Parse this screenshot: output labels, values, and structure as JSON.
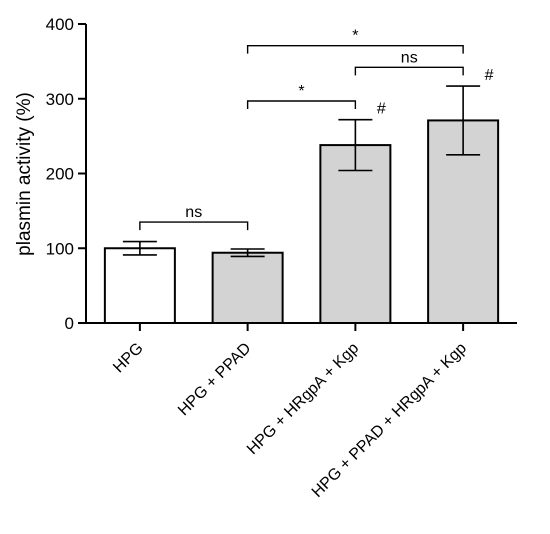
{
  "chart_data": {
    "type": "bar",
    "title": "",
    "xlabel": "",
    "ylabel": "plasmin activity (%)",
    "ylim": [
      0,
      400
    ],
    "yticks": [
      0,
      100,
      200,
      300,
      400
    ],
    "grid": false,
    "categories": [
      "HPG",
      "HPG + PPAD",
      "HPG + HRgpA + Kgp",
      "HPG + PPAD + HRgpA + Kgp"
    ],
    "values": [
      100,
      94,
      238,
      271
    ],
    "errors": [
      9,
      5,
      34,
      46
    ],
    "bar_colors": [
      "#ffffff",
      "#d3d3d3",
      "#d3d3d3",
      "#d3d3d3"
    ],
    "hash_marks": [
      {
        "category": 2,
        "label": "#"
      },
      {
        "category": 3,
        "label": "#"
      }
    ],
    "comparisons": [
      {
        "from": 0,
        "to": 1,
        "label": "ns",
        "level": 135
      },
      {
        "from": 1,
        "to": 2,
        "label": "*",
        "level": 297
      },
      {
        "from": 2,
        "to": 3,
        "label": "ns",
        "level": 342
      },
      {
        "from": 1,
        "to": 3,
        "label": "*",
        "level": 371
      }
    ]
  }
}
